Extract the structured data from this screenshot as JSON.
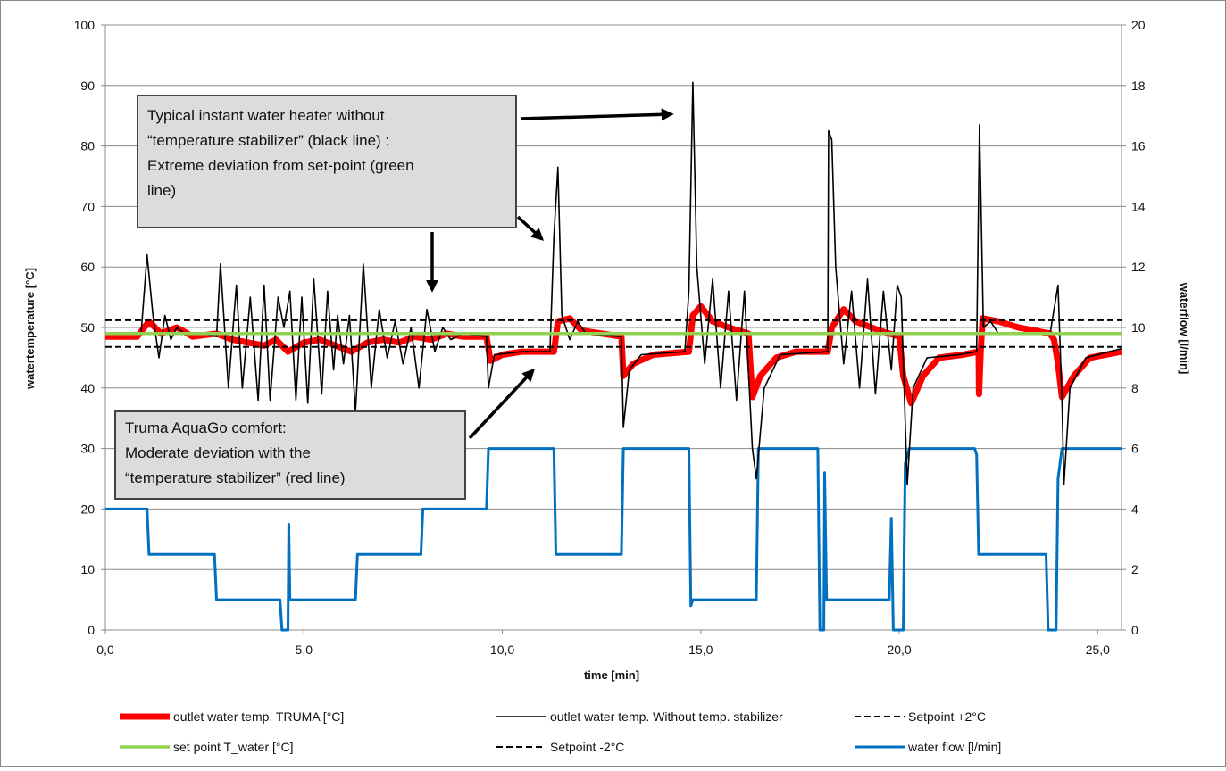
{
  "chart_data": {
    "type": "line",
    "xlabel": "time [min]",
    "ylabel": "watertemperature [°C]",
    "y2label": "waterflow [l/min]",
    "xlim": [
      0,
      25.6
    ],
    "ylim": [
      0,
      100
    ],
    "y2lim": [
      0,
      20
    ],
    "x_ticks": [
      "0,0",
      "5,0",
      "10,0",
      "15,0",
      "20,0",
      "25,0"
    ],
    "x_tick_values": [
      0,
      5,
      10,
      15,
      20,
      25
    ],
    "y_ticks": [
      "0",
      "10",
      "20",
      "30",
      "40",
      "50",
      "60",
      "70",
      "80",
      "90",
      "100"
    ],
    "y2_ticks": [
      "0",
      "2",
      "4",
      "6",
      "8",
      "10",
      "12",
      "14",
      "16",
      "18",
      "20"
    ],
    "grid": "horizontal",
    "legend_position": "bottom",
    "series": [
      {
        "name": "outlet water temp. TRUMA [°C]",
        "color": "#ff0000",
        "axis": "left",
        "points": [
          [
            0,
            48.5
          ],
          [
            0.8,
            48.5
          ],
          [
            1.1,
            51
          ],
          [
            1.4,
            49
          ],
          [
            1.8,
            50
          ],
          [
            2.2,
            48.5
          ],
          [
            2.8,
            49
          ],
          [
            3.2,
            48
          ],
          [
            3.6,
            47.5
          ],
          [
            4.0,
            47
          ],
          [
            4.3,
            48
          ],
          [
            4.6,
            46
          ],
          [
            5.0,
            47.5
          ],
          [
            5.4,
            48
          ],
          [
            5.8,
            47
          ],
          [
            6.2,
            46
          ],
          [
            6.6,
            47.5
          ],
          [
            7.0,
            48
          ],
          [
            7.4,
            47.5
          ],
          [
            7.8,
            48.5
          ],
          [
            8.2,
            48
          ],
          [
            8.6,
            49
          ],
          [
            9.0,
            48.5
          ],
          [
            9.6,
            48.5
          ],
          [
            9.7,
            44.5
          ],
          [
            10.0,
            45.5
          ],
          [
            10.5,
            46
          ],
          [
            11.3,
            46
          ],
          [
            11.4,
            51
          ],
          [
            11.7,
            51.5
          ],
          [
            12.0,
            49.5
          ],
          [
            12.5,
            49
          ],
          [
            13.0,
            48.5
          ],
          [
            13.05,
            42
          ],
          [
            13.3,
            44
          ],
          [
            13.8,
            45.5
          ],
          [
            14.7,
            46
          ],
          [
            14.8,
            52
          ],
          [
            15.0,
            53.5
          ],
          [
            15.3,
            51
          ],
          [
            15.7,
            50
          ],
          [
            16.2,
            49
          ],
          [
            16.3,
            38.5
          ],
          [
            16.5,
            42
          ],
          [
            16.9,
            45
          ],
          [
            17.4,
            46
          ],
          [
            18.2,
            46
          ],
          [
            18.3,
            50
          ],
          [
            18.6,
            53
          ],
          [
            18.9,
            51
          ],
          [
            19.5,
            49.5
          ],
          [
            20.0,
            48.5
          ],
          [
            20.1,
            42
          ],
          [
            20.3,
            37.5
          ],
          [
            20.6,
            42
          ],
          [
            21.0,
            45
          ],
          [
            21.6,
            45.5
          ],
          [
            22.0,
            46
          ],
          [
            22.01,
            39
          ],
          [
            22.05,
            46
          ],
          [
            22.1,
            51.5
          ],
          [
            22.5,
            51
          ],
          [
            23.0,
            50
          ],
          [
            23.8,
            49
          ],
          [
            23.9,
            48
          ],
          [
            24.0,
            44
          ],
          [
            24.1,
            38.5
          ],
          [
            24.4,
            42
          ],
          [
            24.8,
            45
          ],
          [
            25.6,
            46
          ]
        ]
      },
      {
        "name": "outlet water temp. Without temp. stabilizer",
        "color": "#000000",
        "axis": "left",
        "points": [
          [
            0,
            49
          ],
          [
            0.9,
            49
          ],
          [
            1.05,
            62
          ],
          [
            1.2,
            52
          ],
          [
            1.35,
            45
          ],
          [
            1.5,
            52
          ],
          [
            1.65,
            48
          ],
          [
            1.8,
            50
          ],
          [
            2.0,
            49
          ],
          [
            2.5,
            49
          ],
          [
            2.8,
            48.5
          ],
          [
            2.9,
            60.5
          ],
          [
            3.1,
            40
          ],
          [
            3.3,
            57
          ],
          [
            3.45,
            40
          ],
          [
            3.65,
            55
          ],
          [
            3.85,
            38
          ],
          [
            4.0,
            57
          ],
          [
            4.15,
            38
          ],
          [
            4.35,
            55
          ],
          [
            4.5,
            50
          ],
          [
            4.65,
            56
          ],
          [
            4.8,
            38
          ],
          [
            4.95,
            55
          ],
          [
            5.1,
            37.5
          ],
          [
            5.25,
            58
          ],
          [
            5.45,
            39
          ],
          [
            5.6,
            56
          ],
          [
            5.75,
            43
          ],
          [
            5.85,
            52
          ],
          [
            6.0,
            44
          ],
          [
            6.15,
            52
          ],
          [
            6.3,
            36
          ],
          [
            6.5,
            60.5
          ],
          [
            6.7,
            40
          ],
          [
            6.9,
            53
          ],
          [
            7.1,
            45
          ],
          [
            7.3,
            51
          ],
          [
            7.5,
            44
          ],
          [
            7.7,
            50
          ],
          [
            7.9,
            40
          ],
          [
            8.1,
            53
          ],
          [
            8.3,
            46
          ],
          [
            8.5,
            50
          ],
          [
            8.7,
            48
          ],
          [
            9.0,
            49
          ],
          [
            9.6,
            48.5
          ],
          [
            9.65,
            40
          ],
          [
            9.8,
            45.5
          ],
          [
            10.5,
            46
          ],
          [
            11.2,
            46
          ],
          [
            11.3,
            65
          ],
          [
            11.4,
            76.5
          ],
          [
            11.5,
            52
          ],
          [
            11.7,
            48
          ],
          [
            11.9,
            51
          ],
          [
            12.1,
            49
          ],
          [
            13.0,
            48.5
          ],
          [
            13.05,
            33.5
          ],
          [
            13.2,
            43
          ],
          [
            13.5,
            45.5
          ],
          [
            14.6,
            46
          ],
          [
            14.7,
            56
          ],
          [
            14.8,
            90.5
          ],
          [
            14.9,
            60
          ],
          [
            15.0,
            52
          ],
          [
            15.1,
            44
          ],
          [
            15.3,
            58
          ],
          [
            15.5,
            40
          ],
          [
            15.7,
            56
          ],
          [
            15.9,
            38
          ],
          [
            16.1,
            56
          ],
          [
            16.3,
            30
          ],
          [
            16.4,
            25
          ],
          [
            16.6,
            40
          ],
          [
            17.0,
            45.5
          ],
          [
            18.2,
            46
          ],
          [
            18.22,
            82.5
          ],
          [
            18.3,
            81
          ],
          [
            18.4,
            60
          ],
          [
            18.6,
            44
          ],
          [
            18.8,
            56
          ],
          [
            19.0,
            40
          ],
          [
            19.2,
            58
          ],
          [
            19.4,
            39
          ],
          [
            19.6,
            56
          ],
          [
            19.8,
            43
          ],
          [
            19.95,
            57
          ],
          [
            20.05,
            55
          ],
          [
            20.2,
            24
          ],
          [
            20.35,
            40
          ],
          [
            20.7,
            45
          ],
          [
            21.5,
            45.5
          ],
          [
            21.95,
            46
          ],
          [
            22.02,
            83.5
          ],
          [
            22.12,
            50
          ],
          [
            22.3,
            51
          ],
          [
            22.5,
            49
          ],
          [
            23.0,
            49
          ],
          [
            23.8,
            49
          ],
          [
            23.9,
            53
          ],
          [
            24.0,
            57
          ],
          [
            24.1,
            38
          ],
          [
            24.15,
            24
          ],
          [
            24.3,
            40
          ],
          [
            24.7,
            45
          ],
          [
            25.6,
            46.5
          ]
        ]
      },
      {
        "name": "set point T_water [°C]",
        "color": "#92d050",
        "axis": "left",
        "points": [
          [
            0,
            49
          ],
          [
            25.6,
            49
          ]
        ]
      },
      {
        "name": "Setpoint +2°C",
        "color": "#000000",
        "dashed": true,
        "axis": "left",
        "points": [
          [
            0,
            51.2
          ],
          [
            25.6,
            51.2
          ]
        ]
      },
      {
        "name": "Setpoint -2°C",
        "color": "#000000",
        "dashed": true,
        "axis": "left",
        "points": [
          [
            0,
            46.8
          ],
          [
            25.6,
            46.8
          ]
        ]
      },
      {
        "name": "water flow [l/min]",
        "color": "#0070c0",
        "axis": "right",
        "points": [
          [
            0,
            4
          ],
          [
            1.05,
            4
          ],
          [
            1.1,
            2.5
          ],
          [
            2.75,
            2.5
          ],
          [
            2.8,
            1
          ],
          [
            4.4,
            1
          ],
          [
            4.45,
            0
          ],
          [
            4.6,
            0
          ],
          [
            4.62,
            3.5
          ],
          [
            4.65,
            1
          ],
          [
            6.3,
            1
          ],
          [
            6.35,
            2.5
          ],
          [
            7.95,
            2.5
          ],
          [
            8.0,
            4
          ],
          [
            9.6,
            4
          ],
          [
            9.65,
            6
          ],
          [
            11.3,
            6
          ],
          [
            11.35,
            2.5
          ],
          [
            13.0,
            2.5
          ],
          [
            13.05,
            6
          ],
          [
            14.7,
            6
          ],
          [
            14.75,
            0.8
          ],
          [
            14.8,
            1
          ],
          [
            16.4,
            1
          ],
          [
            16.45,
            6
          ],
          [
            17.95,
            6
          ],
          [
            18.0,
            0
          ],
          [
            18.1,
            0
          ],
          [
            18.12,
            5.2
          ],
          [
            18.17,
            1
          ],
          [
            19.75,
            1
          ],
          [
            19.8,
            3.7
          ],
          [
            19.85,
            0
          ],
          [
            20.1,
            0
          ],
          [
            20.15,
            5.5
          ],
          [
            20.25,
            6
          ],
          [
            21.9,
            6
          ],
          [
            21.95,
            5.8
          ],
          [
            22.0,
            2.5
          ],
          [
            23.7,
            2.5
          ],
          [
            23.75,
            0
          ],
          [
            23.95,
            0
          ],
          [
            24.0,
            5
          ],
          [
            24.1,
            6
          ],
          [
            25.6,
            6
          ]
        ]
      }
    ],
    "annotations": [
      "Typical instant water heater without “temperature stabilizer” (black line) : Extreme deviation from set-point (green line)",
      "Truma AquaGo comfort: Moderate deviation with the “temperature stabilizer” (red line)"
    ]
  },
  "callouts": {
    "top_lines": [
      "Typical instant water heater without",
      "“temperature stabilizer” (black line) :",
      "Extreme deviation from set-point (green",
      "line)"
    ],
    "bottom_lines": [
      "Truma AquaGo comfort:",
      "Moderate deviation with the",
      "“temperature stabilizer” (red line)"
    ]
  }
}
